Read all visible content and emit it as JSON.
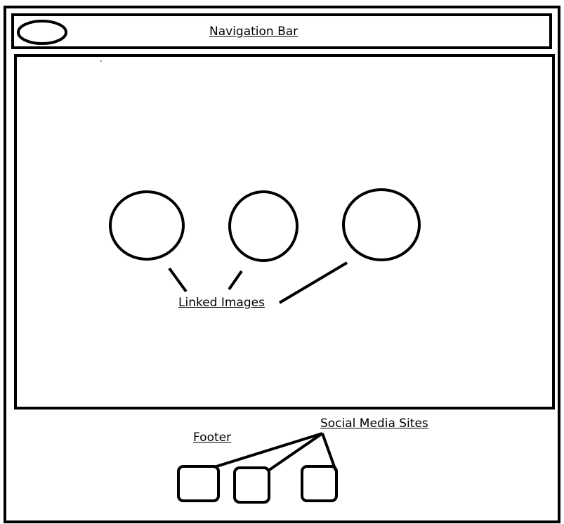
{
  "navigation_bar": {
    "label": "Navigation Bar"
  },
  "main_content": {
    "linked_images_label": "Linked Images"
  },
  "footer": {
    "label": "Footer",
    "social_label": "Social Media Sites"
  },
  "colors": {
    "stroke": "#000000",
    "background": "#ffffff"
  }
}
